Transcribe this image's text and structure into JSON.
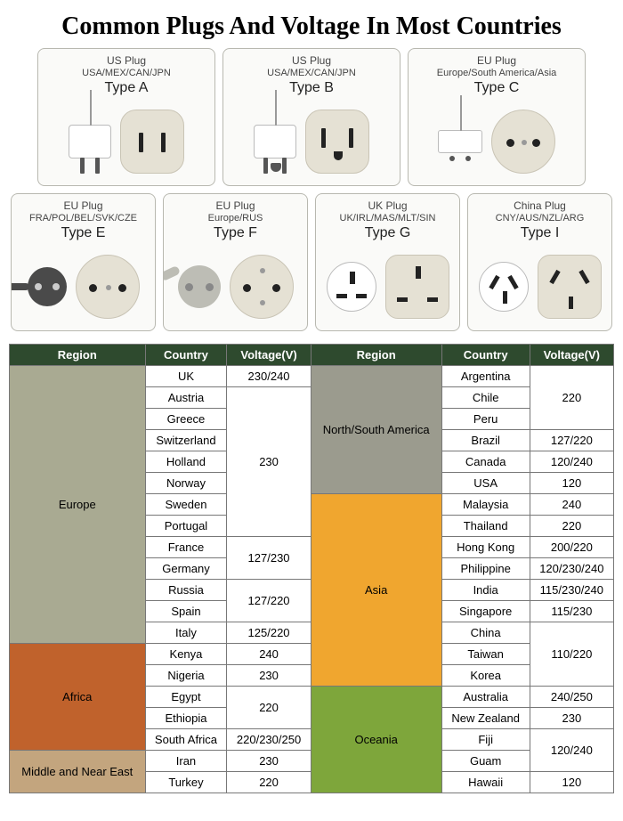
{
  "title": "Common Plugs And Voltage In Most Countries",
  "colors": {
    "header_bg": "#2e4a2e",
    "europe": "#a9aa92",
    "africa": "#c0622c",
    "middle_east": "#c3a57e",
    "north_south_america": "#9b9b8e",
    "asia": "#f0a62f",
    "oceania": "#7ea63b",
    "card_border": "#b8b8b0",
    "socket_fill": "#e5e1d4"
  },
  "plug_cards": [
    {
      "header": "US Plug",
      "countries": "USA/MEX/CAN/JPN",
      "type": "Type A"
    },
    {
      "header": "US Plug",
      "countries": "USA/MEX/CAN/JPN",
      "type": "Type B"
    },
    {
      "header": "EU Plug",
      "countries": "Europe/South America/Asia",
      "type": "Type C"
    },
    {
      "header": "EU Plug",
      "countries": "FRA/POL/BEL/SVK/CZE",
      "type": "Type E"
    },
    {
      "header": "EU Plug",
      "countries": "Europe/RUS",
      "type": "Type F"
    },
    {
      "header": "UK Plug",
      "countries": "UK/IRL/MAS/MLT/SIN",
      "type": "Type G"
    },
    {
      "header": "China Plug",
      "countries": "CNY/AUS/NZL/ARG",
      "type": "Type I"
    }
  ],
  "table": {
    "headers": [
      "Region",
      "Country",
      "Voltage(V)",
      "Region",
      "Country",
      "Voltage(V)"
    ],
    "left": [
      {
        "region": "Europe",
        "region_color": "#a9aa92",
        "rows": [
          [
            "UK",
            "230/240"
          ],
          [
            "Austria",
            null
          ],
          [
            "Greece",
            null
          ],
          [
            "Switzerland",
            null
          ],
          [
            "Holland",
            null
          ],
          [
            "Norway",
            "230"
          ],
          [
            "Sweden",
            null
          ],
          [
            "Portugal",
            null
          ],
          [
            "France",
            null
          ],
          [
            "Germany",
            "127/230"
          ],
          [
            "Russia",
            null
          ],
          [
            "Spain",
            "127/220"
          ],
          [
            "Italy",
            "125/220"
          ]
        ]
      },
      {
        "region": "Africa",
        "region_color": "#c0622c",
        "rows": [
          [
            "Kenya",
            "240"
          ],
          [
            "Nigeria",
            "230"
          ],
          [
            "Egypt",
            null
          ],
          [
            "Ethiopia",
            "220"
          ],
          [
            "South Africa",
            "220/230/250"
          ]
        ]
      },
      {
        "region": "Middle and Near East",
        "region_color": "#c3a57e",
        "rows": [
          [
            "Iran",
            "230"
          ],
          [
            "Turkey",
            "220"
          ]
        ]
      }
    ],
    "right": [
      {
        "region": "North/South America",
        "region_color": "#9b9b8e",
        "rows": [
          [
            "Argentina",
            null
          ],
          [
            "Chile",
            "220"
          ],
          [
            "Peru",
            null
          ],
          [
            "Brazil",
            "127/220"
          ],
          [
            "Canada",
            "120/240"
          ],
          [
            "USA",
            "120"
          ]
        ]
      },
      {
        "region": "Asia",
        "region_color": "#f0a62f",
        "rows": [
          [
            "Malaysia",
            "240"
          ],
          [
            "Thailand",
            "220"
          ],
          [
            "Hong Kong",
            "200/220"
          ],
          [
            "Philippine",
            "120/230/240"
          ],
          [
            "India",
            "115/230/240"
          ],
          [
            "Singapore",
            "115/230"
          ],
          [
            "China",
            null
          ],
          [
            "Taiwan",
            "110/220"
          ],
          [
            "Korea",
            null
          ]
        ]
      },
      {
        "region": "Oceania",
        "region_color": "#7ea63b",
        "rows": [
          [
            "Australia",
            "240/250"
          ],
          [
            "New Zealand",
            "230"
          ],
          [
            "Fiji",
            null
          ],
          [
            "Guam",
            "120/240"
          ],
          [
            "Hawaii",
            "120"
          ]
        ]
      }
    ]
  }
}
